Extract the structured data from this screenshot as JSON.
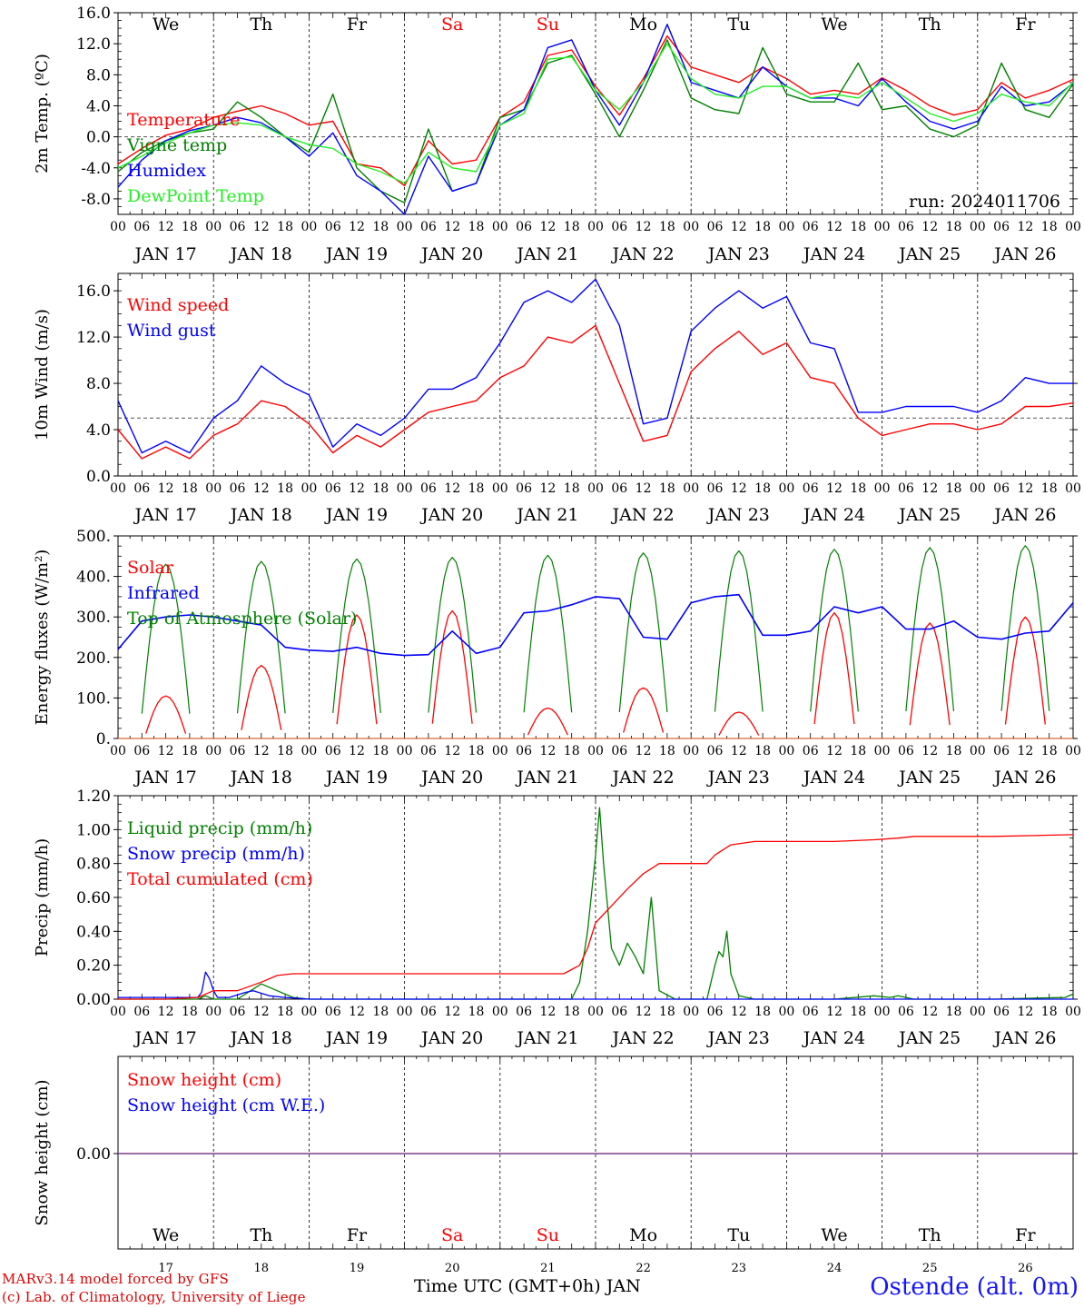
{
  "run_label": "run: 2024011706",
  "days_abbr": [
    "We",
    "Th",
    "Fr",
    "Sa",
    "Su",
    "Mo",
    "Tu",
    "We",
    "Th",
    "Fr"
  ],
  "weekend_color": "#ff0000",
  "weekend_days": [
    "Sa",
    "Su"
  ],
  "date_labels": [
    "JAN 17",
    "JAN 18",
    "JAN 19",
    "JAN 20",
    "JAN 21",
    "JAN 22",
    "JAN 23",
    "JAN 24",
    "JAN 25",
    "JAN 26"
  ],
  "day_numbers": [
    "17",
    "18",
    "19",
    "20",
    "21",
    "22",
    "23",
    "24",
    "25",
    "26"
  ],
  "hour_ticks": [
    "00",
    "06",
    "12",
    "18"
  ],
  "footer": {
    "model": "MARv3.14 model forced by GFS",
    "credit": "(c) Lab. of Climatology, University of Liege",
    "axis_title": "Time UTC (GMT+0h) JAN",
    "station": "Ostende (alt. 0m)"
  },
  "chart_data": [
    {
      "type": "line",
      "ylabel": "2m Temp. (ºC)",
      "ylim": [
        -10,
        16
      ],
      "yticks": [
        "16.0",
        "12.0",
        "8.0",
        "4.0",
        "0.0",
        "-4.0",
        "-8.0"
      ],
      "ytick_values": [
        16,
        12,
        8,
        4,
        0,
        -4,
        -8
      ],
      "ref_line": 0,
      "x_unit": "hours since JAN 17 00 UTC",
      "x": [
        0,
        6,
        12,
        18,
        24,
        30,
        36,
        42,
        48,
        54,
        60,
        66,
        72,
        78,
        84,
        90,
        96,
        102,
        108,
        114,
        120,
        126,
        132,
        138,
        144,
        150,
        156,
        162,
        168,
        174,
        180,
        186,
        192,
        198,
        204,
        210,
        216,
        222,
        228,
        234,
        240
      ],
      "series": [
        {
          "name": "Temperature",
          "color": "#ff0000",
          "values": [
            -3.5,
            -1.5,
            0.2,
            1.0,
            2.5,
            3.3,
            4.0,
            3.0,
            1.5,
            2.0,
            -3.5,
            -4.0,
            -6.3,
            -0.5,
            -3.5,
            -3.0,
            2.5,
            4.5,
            10.5,
            11.2,
            6.5,
            2.8,
            7.5,
            13.0,
            9.0,
            8.0,
            7.0,
            9.0,
            7.5,
            5.5,
            6.0,
            5.5,
            7.6,
            6.0,
            4.0,
            2.8,
            3.5,
            7.0,
            5.0,
            6.0,
            7.4
          ]
        },
        {
          "name": "Vigne temp",
          "color": "#008000",
          "values": [
            -4.5,
            -2.0,
            -0.5,
            0.5,
            1.0,
            4.5,
            2.5,
            0.0,
            -2.0,
            5.5,
            -4.0,
            -7.0,
            -8.5,
            1.0,
            -7.0,
            -6.0,
            2.5,
            3.5,
            9.5,
            10.5,
            5.5,
            0.0,
            6.0,
            12.5,
            5.0,
            3.5,
            3.0,
            11.5,
            5.5,
            4.5,
            4.5,
            9.5,
            3.5,
            4.0,
            1.0,
            0.0,
            1.5,
            9.5,
            3.5,
            2.5,
            6.8
          ]
        },
        {
          "name": "Humidex",
          "color": "#0000ff",
          "values": [
            -6.5,
            -3.0,
            -0.5,
            0.8,
            1.5,
            2.5,
            1.8,
            0.0,
            -2.5,
            0.5,
            -5.0,
            -7.0,
            -10.0,
            -2.5,
            -7.0,
            -6.0,
            1.5,
            3.5,
            11.5,
            12.5,
            6.0,
            1.5,
            7.0,
            14.5,
            7.0,
            6.0,
            5.0,
            9.0,
            6.5,
            5.0,
            5.0,
            4.0,
            7.5,
            4.5,
            2.0,
            1.0,
            2.0,
            6.5,
            4.0,
            4.5,
            6.9
          ]
        },
        {
          "name": "DewPoint Temp",
          "color": "#22ee22",
          "values": [
            -4.0,
            -2.5,
            -0.8,
            0.5,
            1.5,
            1.8,
            1.5,
            0.0,
            -1.0,
            -1.5,
            -3.5,
            -4.5,
            -6.0,
            -2.0,
            -4.0,
            -4.5,
            1.5,
            3.0,
            10.0,
            10.3,
            6.0,
            3.5,
            7.0,
            12.0,
            7.5,
            5.5,
            5.0,
            6.5,
            6.5,
            5.0,
            5.5,
            5.0,
            7.0,
            5.0,
            3.0,
            2.0,
            3.0,
            5.5,
            4.5,
            4.0,
            7.0
          ]
        }
      ]
    },
    {
      "type": "line",
      "ylabel": "10m Wind (m/s)",
      "ylim": [
        0,
        17.5
      ],
      "yticks": [
        "16.0",
        "12.0",
        "8.0",
        "4.0",
        "0.0"
      ],
      "ytick_values": [
        16,
        12,
        8,
        4,
        0
      ],
      "ref_line": 5,
      "x_unit": "hours since JAN 17 00 UTC",
      "x": [
        0,
        6,
        12,
        18,
        24,
        30,
        36,
        42,
        48,
        54,
        60,
        66,
        72,
        78,
        84,
        90,
        96,
        102,
        108,
        114,
        120,
        126,
        132,
        138,
        144,
        150,
        156,
        162,
        168,
        174,
        180,
        186,
        192,
        198,
        204,
        210,
        216,
        222,
        228,
        234,
        240
      ],
      "series": [
        {
          "name": "Wind speed",
          "color": "#ff0000",
          "values": [
            4.0,
            1.5,
            2.5,
            1.5,
            3.5,
            4.5,
            6.5,
            6.0,
            4.5,
            2.0,
            3.5,
            2.5,
            4.0,
            5.5,
            6.0,
            6.5,
            8.5,
            9.5,
            12.0,
            11.5,
            13.0,
            8.0,
            3.0,
            3.5,
            9.0,
            11.0,
            12.5,
            10.5,
            11.5,
            8.5,
            8.0,
            5.0,
            3.5,
            4.0,
            4.5,
            4.5,
            4.0,
            4.5,
            6.0,
            6.0,
            6.3
          ]
        },
        {
          "name": "Wind gust",
          "color": "#0000ff",
          "values": [
            6.5,
            2.0,
            3.0,
            2.0,
            5.0,
            6.5,
            9.5,
            8.0,
            7.0,
            2.5,
            4.5,
            3.5,
            5.0,
            7.5,
            7.5,
            8.5,
            11.5,
            15.0,
            16.0,
            15.0,
            17.0,
            13.0,
            4.5,
            5.0,
            12.5,
            14.5,
            16.0,
            14.5,
            15.5,
            11.5,
            11.0,
            5.5,
            5.5,
            6.0,
            6.0,
            6.0,
            5.5,
            6.5,
            8.5,
            8.0,
            8.0
          ]
        }
      ]
    },
    {
      "type": "line",
      "ylabel": "Energy fluxes (W/m²)",
      "ylim": [
        0,
        500
      ],
      "yticks": [
        "500.",
        "400.",
        "300.",
        "200.",
        "100.",
        "0."
      ],
      "ytick_values": [
        500,
        400,
        300,
        200,
        100,
        0
      ],
      "daily_peaks": {
        "hours_of_peak": [
          12,
          36,
          60,
          84,
          108,
          132,
          156,
          180,
          204,
          228
        ],
        "top_of_atmosphere": [
          430,
          437,
          443,
          447,
          452,
          458,
          463,
          467,
          471,
          476
        ],
        "solar": [
          105,
          180,
          305,
          315,
          75,
          125,
          65,
          310,
          285,
          300
        ]
      },
      "infrared_x": [
        0,
        6,
        12,
        18,
        24,
        30,
        36,
        42,
        48,
        54,
        60,
        66,
        72,
        78,
        84,
        90,
        96,
        102,
        108,
        114,
        120,
        126,
        132,
        138,
        144,
        150,
        156,
        162,
        168,
        174,
        180,
        186,
        192,
        198,
        204,
        210,
        216,
        222,
        228,
        234,
        240
      ],
      "series": [
        {
          "name": "Solar",
          "color": "#ff0000"
        },
        {
          "name": "Infrared",
          "color": "#0000ff",
          "values": [
            220,
            290,
            300,
            305,
            300,
            290,
            280,
            225,
            218,
            215,
            225,
            210,
            205,
            207,
            265,
            210,
            225,
            310,
            315,
            330,
            350,
            345,
            250,
            245,
            335,
            350,
            355,
            255,
            255,
            265,
            325,
            310,
            325,
            270,
            270,
            290,
            250,
            245,
            260,
            265,
            335
          ]
        },
        {
          "name": "Top of Atmosphere (Solar)",
          "color": "#008000"
        }
      ]
    },
    {
      "type": "line",
      "ylabel": "Precip (mm/h)",
      "ylim": [
        0,
        1.2
      ],
      "yticks": [
        "1.20",
        "1.00",
        "0.80",
        "0.60",
        "0.40",
        "0.20",
        "0.00"
      ],
      "ytick_values": [
        1.2,
        1.0,
        0.8,
        0.6,
        0.4,
        0.2,
        0.0
      ],
      "series": [
        {
          "name": "Liquid precip (mm/h)",
          "color": "#008000",
          "x": [
            0,
            20,
            22,
            24,
            26,
            30,
            34,
            36,
            40,
            44,
            48,
            100,
            114,
            116,
            118,
            120,
            121,
            122,
            124,
            126,
            128,
            130,
            132,
            134,
            136,
            140,
            144,
            148,
            150,
            151,
            152,
            153,
            154,
            156,
            160,
            180,
            190,
            194,
            196,
            200,
            220,
            238,
            240
          ],
          "values": [
            0,
            0,
            0.02,
            0,
            0,
            0,
            0.06,
            0.09,
            0.05,
            0.01,
            0,
            0,
            0,
            0.1,
            0.4,
            0.85,
            1.13,
            0.8,
            0.3,
            0.2,
            0.33,
            0.25,
            0.15,
            0.6,
            0.05,
            0,
            0,
            0,
            0.2,
            0.28,
            0.25,
            0.4,
            0.15,
            0.02,
            0,
            0,
            0.02,
            0.01,
            0.02,
            0,
            0,
            0.01,
            0.03
          ]
        },
        {
          "name": "Snow precip (mm/h)",
          "color": "#0000ff",
          "x": [
            0,
            20,
            21,
            22,
            23,
            24,
            25,
            28,
            32,
            34,
            38,
            42,
            48,
            100,
            240
          ],
          "values": [
            0.01,
            0.01,
            0.04,
            0.16,
            0.12,
            0.05,
            0.01,
            0.01,
            0.04,
            0.05,
            0.02,
            0.01,
            0,
            0,
            0
          ]
        },
        {
          "name": "Total cumulated (cm)",
          "color": "#ff0000",
          "x": [
            0,
            12,
            20,
            24,
            30,
            36,
            40,
            44,
            48,
            72,
            100,
            112,
            116,
            118,
            120,
            124,
            128,
            132,
            136,
            140,
            144,
            148,
            150,
            154,
            160,
            180,
            190,
            196,
            200,
            220,
            240
          ],
          "values": [
            0,
            0,
            0.01,
            0.05,
            0.05,
            0.1,
            0.14,
            0.15,
            0.15,
            0.15,
            0.15,
            0.15,
            0.2,
            0.3,
            0.45,
            0.55,
            0.65,
            0.74,
            0.8,
            0.8,
            0.8,
            0.8,
            0.85,
            0.91,
            0.93,
            0.93,
            0.94,
            0.95,
            0.96,
            0.96,
            0.97
          ]
        }
      ]
    },
    {
      "type": "line",
      "ylabel": "Snow height (cm)",
      "yticks": [
        "0.00"
      ],
      "ytick_values": [
        0
      ],
      "series": [
        {
          "name": "Snow height (cm)",
          "color": "#ff0000",
          "values": [
            0,
            0
          ]
        },
        {
          "name": "Snow height (cm W.E.)",
          "color": "#0000ff",
          "values": [
            0,
            0
          ]
        }
      ]
    }
  ]
}
